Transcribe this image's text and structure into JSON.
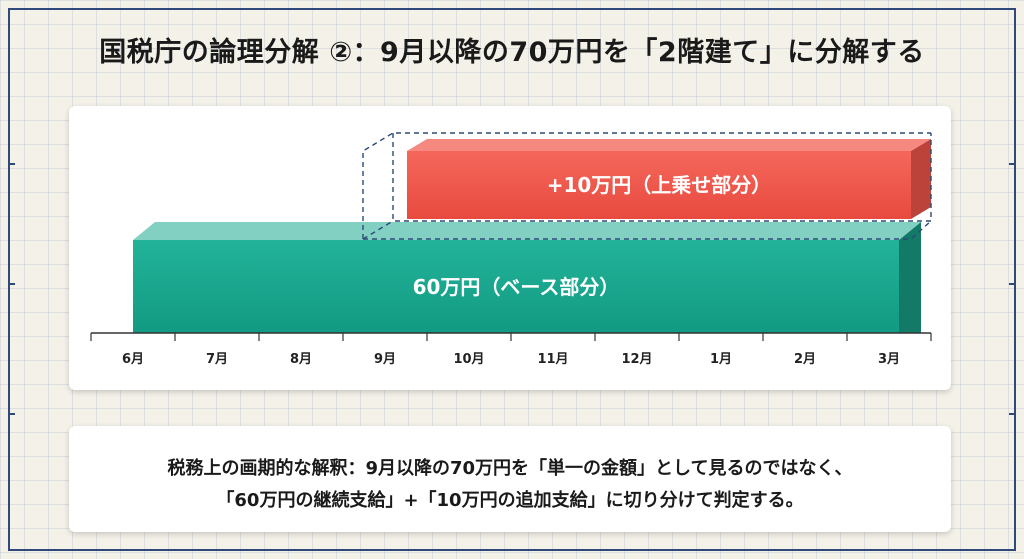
{
  "title": "国税庁の論理分解 ②：9月以降の70万円を「2階建て」に分解する",
  "diagram": {
    "months": [
      "6月",
      "7月",
      "8月",
      "9月",
      "10月",
      "11月",
      "12月",
      "1月",
      "2月",
      "3月"
    ],
    "base_bar": {
      "label": "60万円（ベース部分）",
      "start_month": "6月",
      "end_month": "3月",
      "color": "#1aa990"
    },
    "top_bar": {
      "label": "+10万円（上乗せ部分）",
      "start_month": "9月",
      "end_month": "3月",
      "color": "#f0564a"
    }
  },
  "explanation": {
    "line1": "税務上の画期的な解釈：9月以降の70万円を「単一の金額」として見るのではなく、",
    "line2": "「60万円の継続支給」+「10万円の追加支給」に切り分けて判定する。"
  }
}
